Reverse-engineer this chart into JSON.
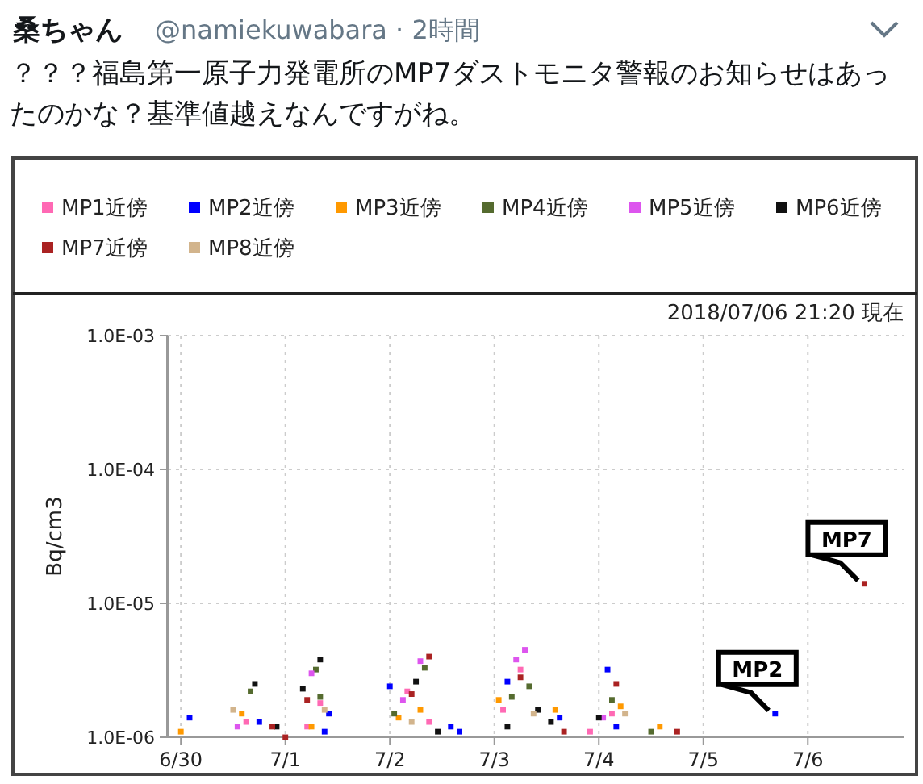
{
  "chart_data": {
    "type": "scatter",
    "title": "？？？福島第一原子力発電所のMP7ダストモニタ警報のお知らせはあったのかな？基準値越えなんですがね。",
    "subtitle": "2018/07/06 21:20 現在",
    "ylabel": "Bq/cm3",
    "annotations": [
      "桑ちゃん",
      "@namiekuwabara · 2時間",
      {
        "text": "MP7",
        "x": "2018-07-06T13:00",
        "y": 1.4e-05
      },
      {
        "text": "MP2",
        "x": "2018-07-05T16:30",
        "y": 1.5e-06
      }
    ],
    "xlim": [
      "2018-06-29T21:00",
      "2018-07-06T22:00"
    ],
    "xticks": [
      {
        "value": "2018-06-30",
        "label": "6/30"
      },
      {
        "value": "2018-07-01",
        "label": "7/1"
      },
      {
        "value": "2018-07-02",
        "label": "7/2"
      },
      {
        "value": "2018-07-03",
        "label": "7/3"
      },
      {
        "value": "2018-07-04",
        "label": "7/4"
      },
      {
        "value": "2018-07-05",
        "label": "7/5"
      },
      {
        "value": "2018-07-06",
        "label": "7/6"
      }
    ],
    "ylim": [
      1e-06,
      0.001
    ],
    "yticks": [
      {
        "value": 1e-06,
        "label": "1.0E-06"
      },
      {
        "value": 1e-05,
        "label": "1.0E-05"
      },
      {
        "value": 0.0001,
        "label": "1.0E-04"
      },
      {
        "value": 0.001,
        "label": "1.0E-03"
      }
    ],
    "log": true,
    "grid": true,
    "legend": "top",
    "marker": "square",
    "series": [
      {
        "name": "MP1近傍",
        "color": "#ff69b4",
        "x": [
          "2018-06-30T15:00",
          "2018-07-01T08:00",
          "2018-07-01T05:00",
          "2018-07-02T04:00",
          "2018-07-02T09:00",
          "2018-07-03T06:00",
          "2018-07-03T02:00",
          "2018-07-03T22:00",
          "2018-07-04T03:00"
        ],
        "values": [
          1.3e-06,
          1.8e-06,
          1.2e-06,
          2.2e-06,
          1.3e-06,
          3.2e-06,
          1.6e-06,
          1.1e-06,
          1.5e-06
        ]
      },
      {
        "name": "MP2近傍",
        "color": "#0000ff",
        "x": [
          "2018-06-30T02:00",
          "2018-06-30T18:00",
          "2018-07-01T10:00",
          "2018-07-01T09:00",
          "2018-07-02T00:00",
          "2018-07-02T14:00",
          "2018-07-02T16:00",
          "2018-07-03T03:00",
          "2018-07-03T15:00",
          "2018-07-04T02:00",
          "2018-07-04T04:00",
          "2018-07-05T16:30"
        ],
        "values": [
          1.4e-06,
          1.3e-06,
          1.5e-06,
          1.1e-06,
          2.4e-06,
          1.2e-06,
          1.1e-06,
          2.6e-06,
          1.4e-06,
          3.2e-06,
          1.2e-06,
          1.5e-06
        ]
      },
      {
        "name": "MP3近傍",
        "color": "#ff9900",
        "x": [
          "2018-06-30T00:00",
          "2018-06-30T14:00",
          "2018-07-01T06:00",
          "2018-07-02T02:00",
          "2018-07-02T07:00",
          "2018-07-03T01:00",
          "2018-07-03T14:00",
          "2018-07-04T05:00",
          "2018-07-04T14:00"
        ],
        "values": [
          1.1e-06,
          1.5e-06,
          1.2e-06,
          1.4e-06,
          1.6e-06,
          1.9e-06,
          1.6e-06,
          1.7e-06,
          1.2e-06
        ]
      },
      {
        "name": "MP4近傍",
        "color": "#556b2f",
        "x": [
          "2018-06-30T16:00",
          "2018-07-01T07:00",
          "2018-07-01T08:00",
          "2018-07-02T08:00",
          "2018-07-02T01:00",
          "2018-07-03T04:00",
          "2018-07-03T08:00",
          "2018-07-04T03:00",
          "2018-07-04T12:00"
        ],
        "values": [
          2.2e-06,
          3.2e-06,
          2e-06,
          3.3e-06,
          1.5e-06,
          2e-06,
          2.4e-06,
          1.9e-06,
          1.1e-06
        ]
      },
      {
        "name": "MP5近傍",
        "color": "#dd55ee",
        "x": [
          "2018-06-30T13:00",
          "2018-07-01T06:00",
          "2018-07-02T07:00",
          "2018-07-02T03:00",
          "2018-07-03T07:00",
          "2018-07-03T05:00",
          "2018-07-04T01:00"
        ],
        "values": [
          1.2e-06,
          3e-06,
          3.7e-06,
          1.9e-06,
          4.5e-06,
          3.8e-06,
          1.4e-06
        ]
      },
      {
        "name": "MP6近傍",
        "color": "#111111",
        "x": [
          "2018-06-30T17:00",
          "2018-06-30T22:00",
          "2018-07-01T08:00",
          "2018-07-01T04:00",
          "2018-07-02T06:00",
          "2018-07-02T11:00",
          "2018-07-03T03:00",
          "2018-07-03T10:00",
          "2018-07-03T13:00",
          "2018-07-04T00:00"
        ],
        "values": [
          2.5e-06,
          1.2e-06,
          3.8e-06,
          2.3e-06,
          2.6e-06,
          1.1e-06,
          1.2e-06,
          1.6e-06,
          1.3e-06,
          1.4e-06
        ]
      },
      {
        "name": "MP7近傍",
        "color": "#aa2222",
        "x": [
          "2018-06-30T21:00",
          "2018-07-01T00:00",
          "2018-07-01T05:00",
          "2018-07-02T09:00",
          "2018-07-02T05:00",
          "2018-07-03T06:00",
          "2018-07-03T16:00",
          "2018-07-04T04:00",
          "2018-07-04T18:00",
          "2018-07-06T13:00"
        ],
        "values": [
          1.2e-06,
          1e-06,
          1.9e-06,
          4e-06,
          2.1e-06,
          2.8e-06,
          1.1e-06,
          2.5e-06,
          1.1e-06,
          1.4e-05
        ]
      },
      {
        "name": "MP8近傍",
        "color": "#d2b48c",
        "x": [
          "2018-06-30T12:00",
          "2018-07-01T09:00",
          "2018-07-02T05:00",
          "2018-07-03T09:00",
          "2018-07-04T06:00"
        ],
        "values": [
          1.6e-06,
          1.6e-06,
          1.3e-06,
          1.5e-06,
          1.5e-06
        ]
      }
    ]
  }
}
